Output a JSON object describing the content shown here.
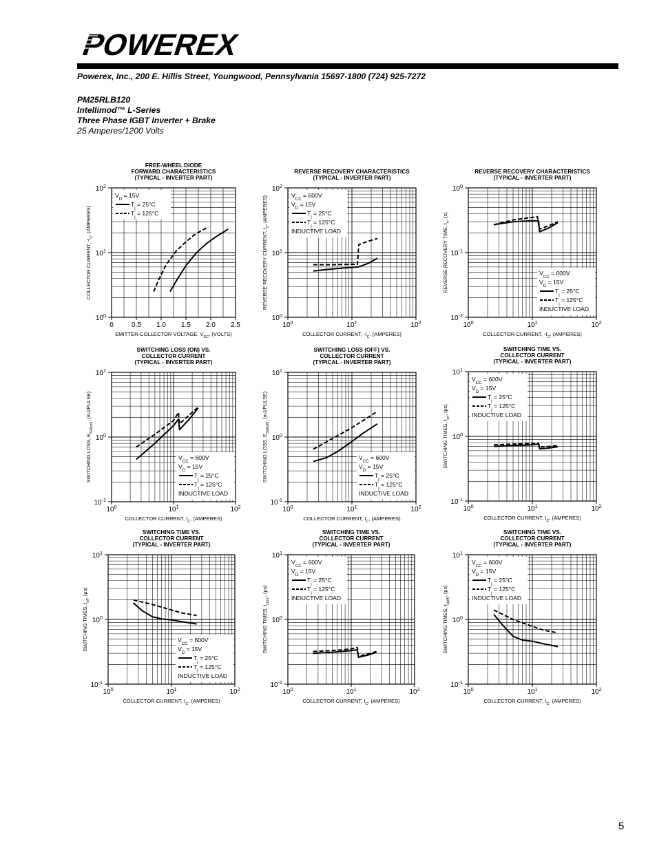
{
  "header": {
    "logo_text": "POWEREX",
    "address": "Powerex, Inc., 200 E. Hillis Street, Youngwood, Pennsylvania 15697-1800 (724) 925-7272"
  },
  "product": {
    "part_number": "PM25RLB120",
    "series": "Intellimod™ L-Series",
    "description": "Three Phase IGBT Inverter + Brake",
    "rating": "25 Amperes/1200 Volts"
  },
  "page_number": "5",
  "chart_data": [
    {
      "type": "line",
      "title_lines": [
        "FREE-WHEEL DIODE",
        "FORWARD CHARACTERISTICS",
        "(TYPICAL - INVERTER PART)"
      ],
      "xlabel": "EMITTER-COLLECTOR VOLTAGE, V",
      "xlabel_sub": "EC",
      "xlabel_tail": ", (VOLTS)",
      "ylabel": "COLLECTOR CURRENT, -I",
      "ylabel_sub": "C",
      "ylabel_tail": ", (AMPERES)",
      "xscale": "linear",
      "xlim": [
        0,
        2.5
      ],
      "xticks": [
        "0",
        "0.5",
        "1.0",
        "1.5",
        "2.0",
        "2.5"
      ],
      "yscale": "log",
      "ylim_exp": [
        0,
        2
      ],
      "legend_pos": "top-left",
      "legend_lines": [
        {
          "main": "V",
          "sub": "D",
          "tail": " = 15V"
        },
        {
          "main": "T",
          "sub": "j",
          "tail": " = 25°C",
          "style": "solid"
        },
        {
          "main": "T",
          "sub": "j",
          "tail": " = 125°C",
          "style": "dashed"
        }
      ],
      "series": [
        {
          "style": "solid",
          "x": [
            1.18,
            1.3,
            1.5,
            1.7,
            1.9,
            2.1,
            2.35
          ],
          "y": [
            2.5,
            3.6,
            6.3,
            9.7,
            13.5,
            17.5,
            23
          ]
        },
        {
          "style": "dashed",
          "x": [
            0.85,
            0.95,
            1.1,
            1.3,
            1.5,
            1.7,
            1.95
          ],
          "y": [
            2.5,
            3.8,
            6.5,
            10.5,
            14.7,
            19.5,
            25
          ]
        }
      ]
    },
    {
      "type": "line",
      "title_lines": [
        "REVERSE RECOVERY CHARACTERISTICS",
        "(TYPICAL - INVERTER PART)"
      ],
      "xlabel": "COLLECTOR CURRENT, -I",
      "xlabel_sub": "C",
      "xlabel_tail": ", (AMPERES)",
      "ylabel": "REVERSE RECOVERY CURRENT, I",
      "ylabel_sub": "rr",
      "ylabel_tail": ", (AMPERES)",
      "xscale": "log",
      "xlim_exp": [
        0,
        2
      ],
      "yscale": "log",
      "ylim_exp": [
        0,
        2
      ],
      "legend_pos": "top-left",
      "legend_lines": [
        {
          "main": "V",
          "sub": "CC",
          "tail": " = 600V"
        },
        {
          "main": "V",
          "sub": "D",
          "tail": " = 15V"
        },
        {
          "main": "T",
          "sub": "j",
          "tail": " = 25°C",
          "style": "solid"
        },
        {
          "main": "T",
          "sub": "j",
          "tail": " = 125°C",
          "style": "dashed"
        },
        {
          "main": "INDUCTIVE LOAD",
          "sub": "",
          "tail": ""
        }
      ],
      "series": [
        {
          "style": "solid",
          "x": [
            2.5,
            5,
            10,
            12.5,
            18,
            25
          ],
          "y": [
            5.2,
            5.6,
            5.9,
            6.0,
            6.8,
            8.2
          ]
        },
        {
          "style": "dashed",
          "x": [
            2.5,
            5,
            10,
            12.2,
            12.8,
            18,
            25
          ],
          "y": [
            6.5,
            6.5,
            6.6,
            6.6,
            13.3,
            15,
            16.5
          ]
        }
      ]
    },
    {
      "type": "line",
      "title_lines": [
        "REVERSE RECOVERY CHARACTERISTICS",
        "(TYPICAL - INVERTER PART)"
      ],
      "xlabel": "COLLECTOR CURRENT, -I",
      "xlabel_sub": "C",
      "xlabel_tail": ", (AMPERES)",
      "ylabel": "REVERSE RECOVERY TIME, t",
      "ylabel_sub": "rr",
      "ylabel_tail": ", (s)",
      "xscale": "log",
      "xlim_exp": [
        0,
        2
      ],
      "yscale": "log",
      "ylim_exp": [
        -2,
        0
      ],
      "legend_pos": "bottom-right",
      "legend_lines": [
        {
          "main": "V",
          "sub": "CC",
          "tail": " = 600V"
        },
        {
          "main": "V",
          "sub": "D",
          "tail": " = 15V"
        },
        {
          "main": "T",
          "sub": "j",
          "tail": " = 25°C",
          "style": "solid"
        },
        {
          "main": "T",
          "sub": "j",
          "tail": " = 125°C",
          "style": "dashed"
        },
        {
          "main": "INDUCTIVE LOAD",
          "sub": "",
          "tail": ""
        }
      ],
      "series": [
        {
          "style": "solid",
          "x": [
            2.5,
            5,
            10,
            12.5,
            13,
            18,
            25
          ],
          "y": [
            0.27,
            0.3,
            0.31,
            0.31,
            0.21,
            0.24,
            0.29
          ]
        },
        {
          "style": "dashed",
          "x": [
            2.5,
            5,
            10,
            12,
            12.8,
            18,
            25
          ],
          "y": [
            0.27,
            0.32,
            0.35,
            0.36,
            0.23,
            0.26,
            0.3
          ]
        }
      ]
    },
    {
      "type": "line",
      "title_lines": [
        "SWITCHING LOSS (ON) VS.",
        "COLLECTOR CURRENT",
        "(TYPICAL - INVERTER PART)"
      ],
      "xlabel": "COLLECTOR CURRENT, I",
      "xlabel_sub": "C",
      "xlabel_tail": ", (AMPERES)",
      "ylabel": "SWITCHING LOSS, E",
      "ylabel_sub": "SW(on)",
      "ylabel_tail": ", (mJ/PULSE)",
      "xscale": "log",
      "xlim_exp": [
        0,
        2
      ],
      "yscale": "log",
      "ylim_exp": [
        -1,
        1
      ],
      "legend_pos": "bottom-right",
      "legend_lines": [
        {
          "main": "V",
          "sub": "CC",
          "tail": " = 600V"
        },
        {
          "main": "V",
          "sub": "D",
          "tail": " = 15V"
        },
        {
          "main": "T",
          "sub": "j",
          "tail": " = 25°C",
          "style": "solid"
        },
        {
          "main": "T",
          "sub": "j",
          "tail": " = 125°C",
          "style": "dashed"
        },
        {
          "main": "INDUCTIVE LOAD",
          "sub": "",
          "tail": ""
        }
      ],
      "series": [
        {
          "style": "solid",
          "x": [
            2.5,
            5,
            10,
            12,
            12.5,
            18,
            25
          ],
          "y": [
            0.45,
            0.8,
            1.5,
            1.9,
            1.3,
            1.9,
            2.8
          ]
        },
        {
          "style": "dashed",
          "x": [
            2.5,
            5,
            10,
            12,
            12.5,
            18,
            25
          ],
          "y": [
            0.7,
            1.1,
            1.8,
            2.4,
            1.6,
            2.2,
            2.9
          ]
        }
      ]
    },
    {
      "type": "line",
      "title_lines": [
        "SWITCHING LOSS (OFF) VS.",
        "COLLECTOR CURRENT",
        "(TYPICAL - INVERTER PART)"
      ],
      "xlabel": "COLLECTOR CURRENT, I",
      "xlabel_sub": "C",
      "xlabel_tail": ", (AMPERES)",
      "ylabel": "SWITCHING LOSS, E",
      "ylabel_sub": "SW(off)",
      "ylabel_tail": ", (mJ/PULSE)",
      "xscale": "log",
      "xlim_exp": [
        0,
        2
      ],
      "yscale": "log",
      "ylim_exp": [
        -1,
        1
      ],
      "legend_pos": "bottom-right",
      "legend_lines": [
        {
          "main": "V",
          "sub": "CC",
          "tail": " = 600V"
        },
        {
          "main": "V",
          "sub": "D",
          "tail": " = 15V"
        },
        {
          "main": "T",
          "sub": "j",
          "tail": " = 25°C",
          "style": "solid"
        },
        {
          "main": "T",
          "sub": "j",
          "tail": " = 125°C",
          "style": "dashed"
        },
        {
          "main": "INDUCTIVE LOAD",
          "sub": "",
          "tail": ""
        }
      ],
      "series": [
        {
          "style": "solid",
          "x": [
            2.5,
            4,
            6,
            10,
            15,
            25
          ],
          "y": [
            0.42,
            0.48,
            0.6,
            0.85,
            1.15,
            1.6
          ]
        },
        {
          "style": "dashed",
          "x": [
            2.5,
            5,
            10,
            15,
            25
          ],
          "y": [
            0.65,
            0.95,
            1.4,
            1.8,
            2.5
          ]
        }
      ]
    },
    {
      "type": "line",
      "title_lines": [
        "SWITCHING TIME VS.",
        "COLLECTOR CURRENT",
        "(TYPICAL - INVERTER PART)"
      ],
      "xlabel": "COLLECTOR CURRENT, I",
      "xlabel_sub": "C",
      "xlabel_tail": ", (AMPERES)",
      "ylabel": "SWITCHING TIMES, t",
      "ylabel_sub": "on",
      "ylabel_tail": ", (μs)",
      "xscale": "log",
      "xlim_exp": [
        0,
        2
      ],
      "yscale": "log",
      "ylim_exp": [
        -1,
        1
      ],
      "legend_pos": "top-left",
      "legend_lines": [
        {
          "main": "V",
          "sub": "CC",
          "tail": " = 600V"
        },
        {
          "main": "V",
          "sub": "D",
          "tail": " = 15V"
        },
        {
          "main": "T",
          "sub": "j",
          "tail": " = 25°C",
          "style": "solid"
        },
        {
          "main": "T",
          "sub": "j",
          "tail": " = 125°C",
          "style": "dashed"
        },
        {
          "main": "INDUCTIVE LOAD",
          "sub": "",
          "tail": ""
        }
      ],
      "series": [
        {
          "style": "solid",
          "x": [
            2.5,
            5,
            10,
            12.5,
            13,
            18,
            25
          ],
          "y": [
            0.7,
            0.72,
            0.74,
            0.76,
            0.64,
            0.66,
            0.69
          ]
        },
        {
          "style": "dashed",
          "x": [
            2.5,
            5,
            10,
            12.5,
            13,
            18,
            25
          ],
          "y": [
            0.74,
            0.76,
            0.77,
            0.78,
            0.68,
            0.7,
            0.72
          ]
        }
      ]
    },
    {
      "type": "line",
      "title_lines": [
        "SWITCHING TIME VS.",
        "COLLECTOR CURRENT",
        "(TYPICAL - INVERTER PART)"
      ],
      "xlabel": "COLLECTOR CURRENT, I",
      "xlabel_sub": "C",
      "xlabel_tail": ", (AMPERES)",
      "ylabel": "SWITCHING TIMES, t",
      "ylabel_sub": "off",
      "ylabel_tail": ", (μs)",
      "xscale": "log",
      "xlim_exp": [
        0,
        2
      ],
      "yscale": "log",
      "ylim_exp": [
        -1,
        1
      ],
      "legend_pos": "bottom-right",
      "legend_lines": [
        {
          "main": "V",
          "sub": "CC",
          "tail": " = 600V"
        },
        {
          "main": "V",
          "sub": "D",
          "tail": " = 15V"
        },
        {
          "main": "T",
          "sub": "j",
          "tail": " = 25°C",
          "style": "solid"
        },
        {
          "main": "T",
          "sub": "j",
          "tail": " = 125°C",
          "style": "dashed"
        },
        {
          "main": "INDUCTIVE LOAD",
          "sub": "",
          "tail": ""
        }
      ],
      "series": [
        {
          "style": "solid",
          "x": [
            2.5,
            3.5,
            5,
            7,
            10,
            15,
            25
          ],
          "y": [
            1.8,
            1.35,
            1.1,
            1.02,
            0.98,
            0.92,
            0.85
          ]
        },
        {
          "style": "dashed",
          "x": [
            2.5,
            5,
            10,
            15,
            25
          ],
          "y": [
            2.0,
            1.7,
            1.4,
            1.25,
            1.15
          ]
        }
      ]
    },
    {
      "type": "line",
      "title_lines": [
        "SWITCHING TIME VS.",
        "COLLECTOR CURRENT",
        "(TYPICAL - INVERTER PART)"
      ],
      "xlabel": "COLLECTOR CURRENT, I",
      "xlabel_sub": "C",
      "xlabel_tail": ", (AMPERES)",
      "ylabel": "SWITCHING TIMES, t",
      "ylabel_sub": "c(on)",
      "ylabel_tail": ", (μs)",
      "xscale": "log",
      "xlim_exp": [
        0,
        2
      ],
      "yscale": "log",
      "ylim_exp": [
        -1,
        1
      ],
      "legend_pos": "top-left",
      "legend_lines": [
        {
          "main": "V",
          "sub": "CC",
          "tail": " = 600V"
        },
        {
          "main": "V",
          "sub": "D",
          "tail": " = 15V"
        },
        {
          "main": "T",
          "sub": "j",
          "tail": " = 25°C",
          "style": "solid"
        },
        {
          "main": "T",
          "sub": "j",
          "tail": " = 125°C",
          "style": "dashed"
        },
        {
          "main": "INDUCTIVE LOAD",
          "sub": "",
          "tail": ""
        }
      ],
      "series": [
        {
          "style": "solid",
          "x": [
            2.5,
            5,
            10,
            12.5,
            13,
            18,
            25
          ],
          "y": [
            0.3,
            0.31,
            0.33,
            0.34,
            0.26,
            0.28,
            0.31
          ]
        },
        {
          "style": "dashed",
          "x": [
            2.5,
            5,
            10,
            12.5,
            13,
            18,
            25
          ],
          "y": [
            0.32,
            0.33,
            0.35,
            0.37,
            0.27,
            0.29,
            0.32
          ]
        }
      ]
    },
    {
      "type": "line",
      "title_lines": [
        "SWITCHING TIME VS.",
        "COLLECTOR CURRENT",
        "(TYPICAL - INVERTER PART)"
      ],
      "xlabel": "COLLECTOR CURRENT, I",
      "xlabel_sub": "C",
      "xlabel_tail": ", (AMPERES)",
      "ylabel": "SWITCHING TIMES, t",
      "ylabel_sub": "c(off)",
      "ylabel_tail": ", (μs)",
      "xscale": "log",
      "xlim_exp": [
        0,
        2
      ],
      "yscale": "log",
      "ylim_exp": [
        -1,
        1
      ],
      "legend_pos": "top-left",
      "legend_lines": [
        {
          "main": "V",
          "sub": "CC",
          "tail": " = 600V"
        },
        {
          "main": "V",
          "sub": "D",
          "tail": " = 15V"
        },
        {
          "main": "T",
          "sub": "j",
          "tail": " = 25°C",
          "style": "solid"
        },
        {
          "main": "T",
          "sub": "j",
          "tail": " = 125°C",
          "style": "dashed"
        },
        {
          "main": "INDUCTIVE LOAD",
          "sub": "",
          "tail": ""
        }
      ],
      "series": [
        {
          "style": "solid",
          "x": [
            2.5,
            3.5,
            5,
            7,
            10,
            15,
            25
          ],
          "y": [
            1.2,
            0.8,
            0.55,
            0.48,
            0.46,
            0.42,
            0.38
          ]
        },
        {
          "style": "dashed",
          "x": [
            2.5,
            5,
            10,
            15,
            25
          ],
          "y": [
            1.4,
            1.0,
            0.78,
            0.68,
            0.62
          ]
        }
      ]
    }
  ]
}
